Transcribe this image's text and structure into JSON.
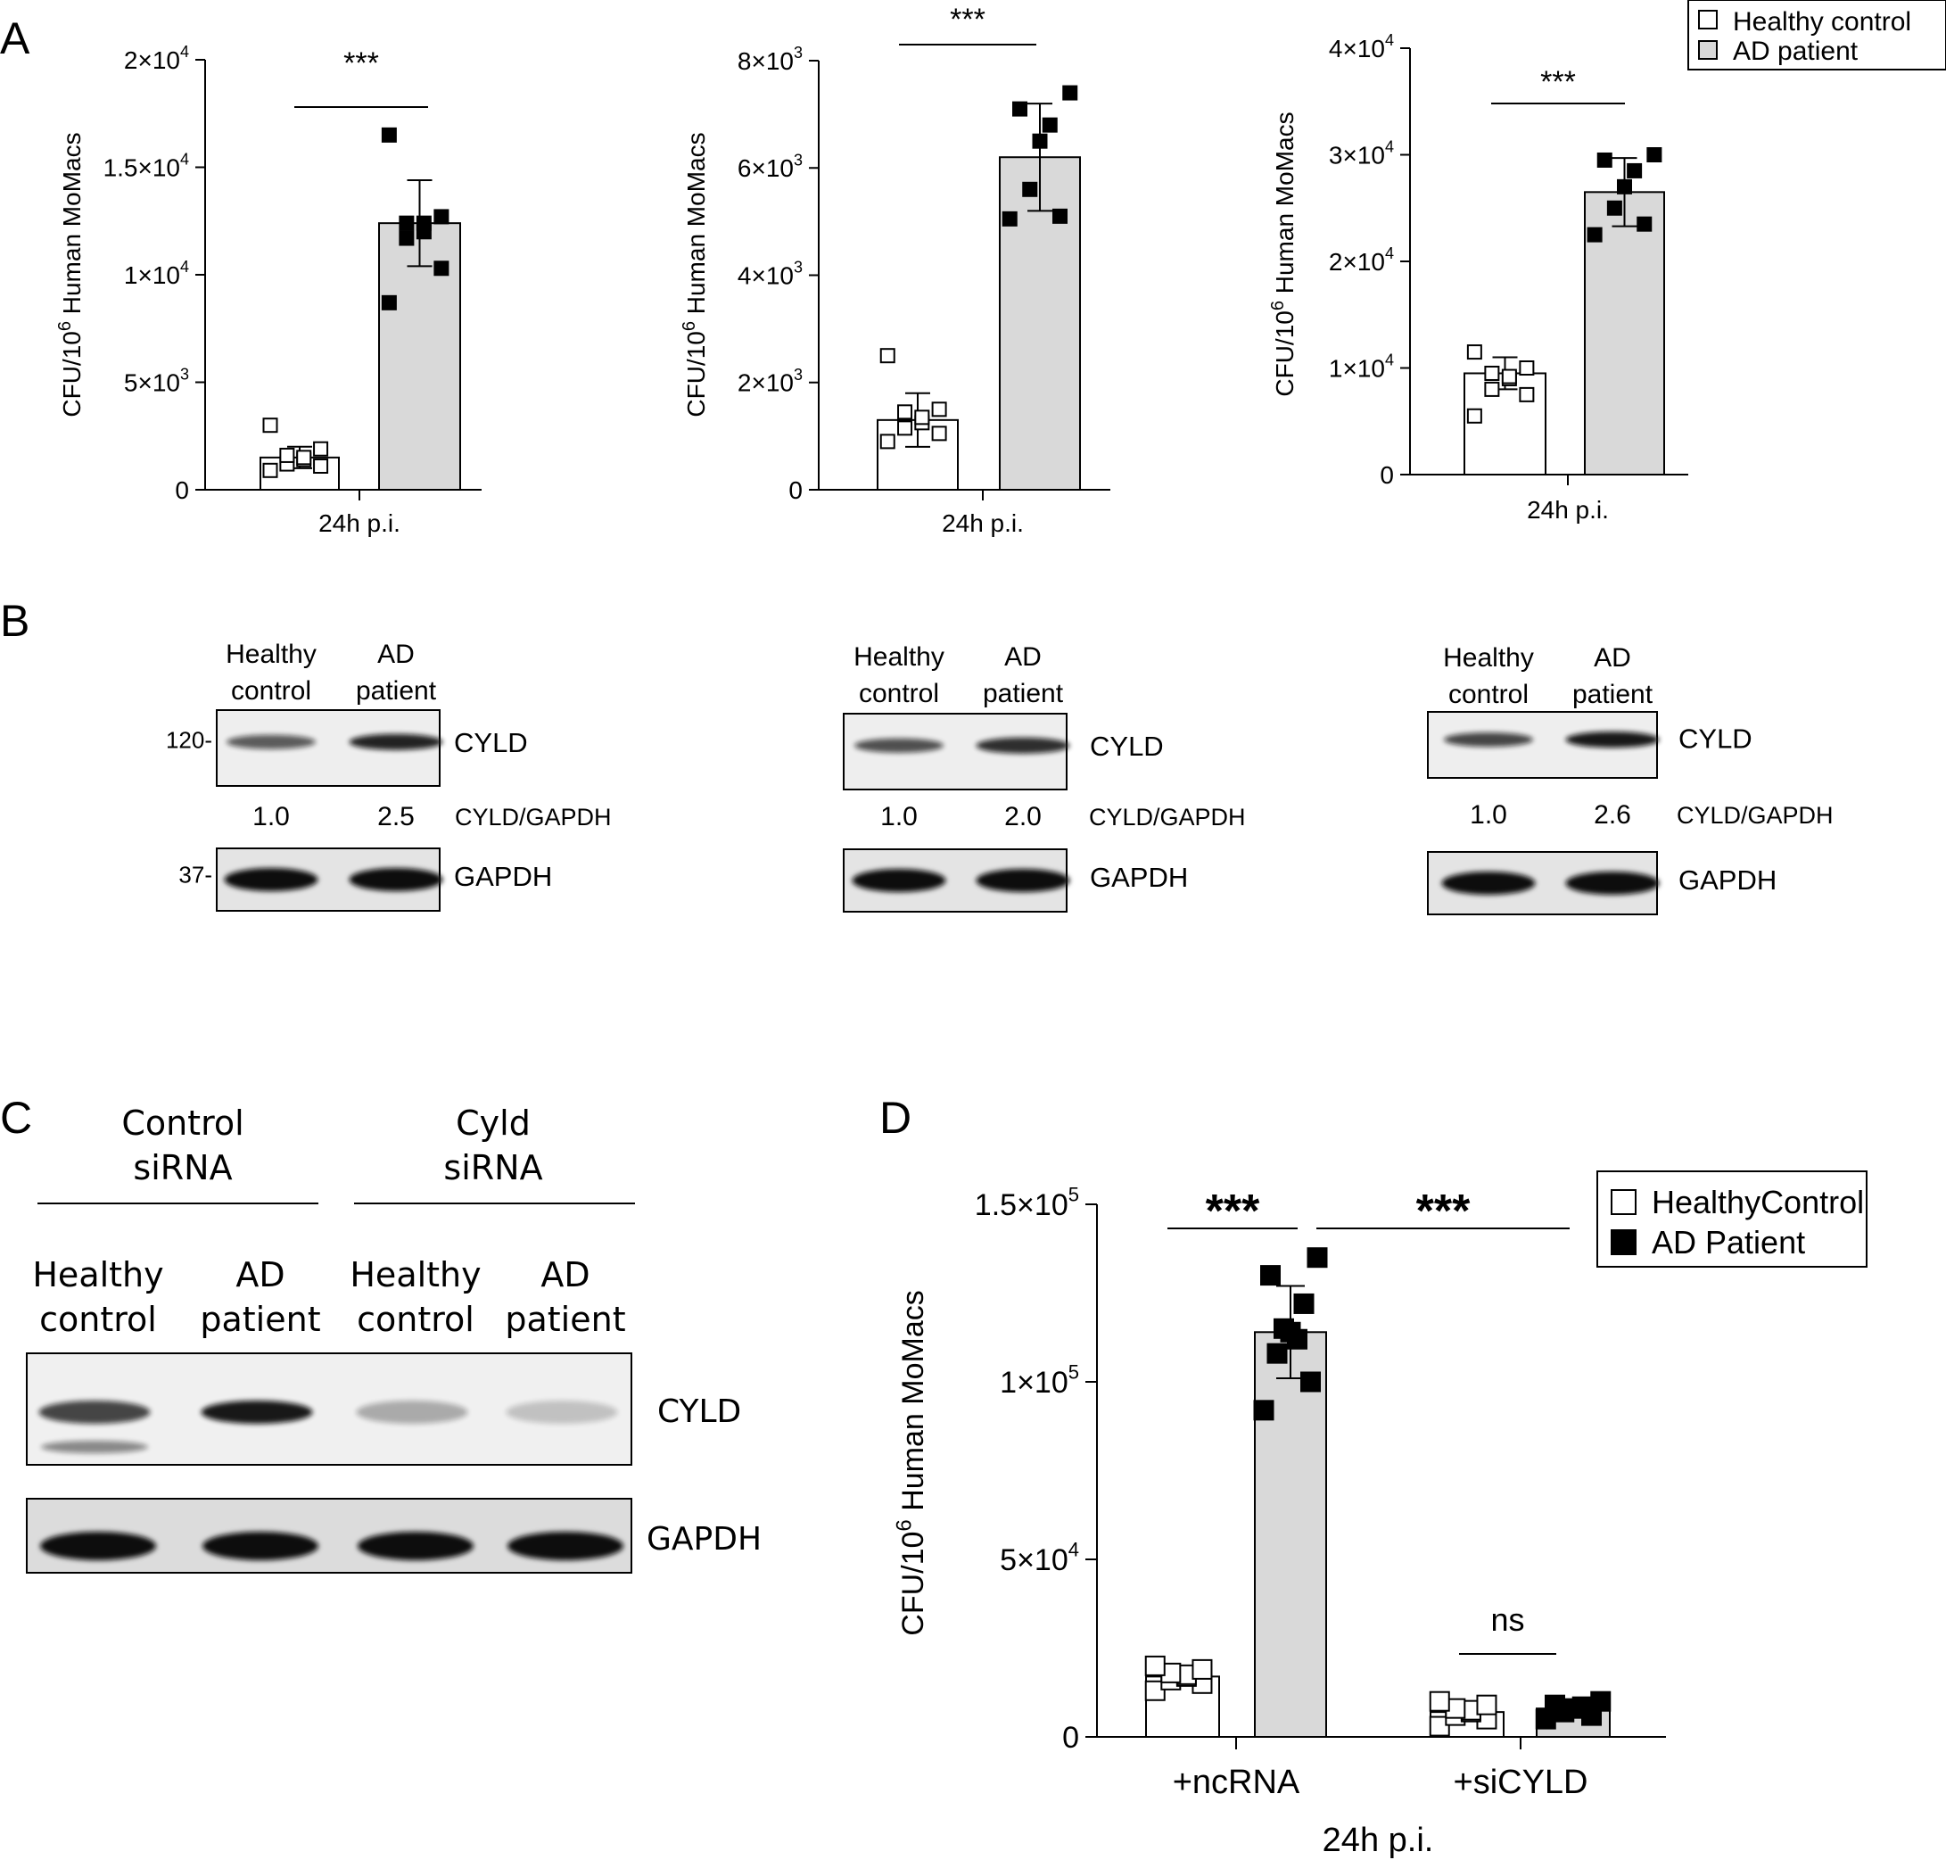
{
  "panel_labels": {
    "a": "A",
    "b": "B",
    "c": "C",
    "d": "D"
  },
  "legend_a": {
    "healthy": "Healthy control",
    "patient": "AD patient"
  },
  "legend_d": {
    "healthy": "HealthyControl",
    "patient": "AD Patient"
  },
  "colors": {
    "patient_bar": "#d9d9d9",
    "healthy_bar": "#ffffff",
    "blot_band": "#111111",
    "blot_bg": "#eeeeee"
  },
  "chart_data": [
    {
      "type": "bar",
      "panel": "A1",
      "ylabel_main": "CFU/10",
      "ylabel_sup": "6",
      "ylabel_rest": " Human MoMacs",
      "xlabel": "24h p.i.",
      "ylim": [
        0,
        20000
      ],
      "yticks": [
        {
          "v": 0,
          "base": "0",
          "exp": ""
        },
        {
          "v": 5000,
          "base": "5×10",
          "exp": "3"
        },
        {
          "v": 10000,
          "base": "1×10",
          "exp": "4"
        },
        {
          "v": 15000,
          "base": "1.5×10",
          "exp": "4"
        },
        {
          "v": 20000,
          "base": "2×10",
          "exp": "4"
        }
      ],
      "significance": "***",
      "series": [
        {
          "name": "Healthy control",
          "value": 1500,
          "error": 500,
          "points": [
            900,
            1100,
            1200,
            1400,
            1500,
            1600,
            1900,
            3000
          ]
        },
        {
          "name": "AD patient",
          "value": 12400,
          "error": 2000,
          "points": [
            8700,
            10300,
            11700,
            12000,
            12400,
            12400,
            12700,
            16500
          ]
        }
      ]
    },
    {
      "type": "bar",
      "panel": "A2",
      "ylabel_main": "CFU/10",
      "ylabel_sup": "6",
      "ylabel_rest": " Human MoMacs",
      "xlabel": "24h p.i.",
      "ylim": [
        0,
        8000
      ],
      "yticks": [
        {
          "v": 0,
          "base": "0",
          "exp": ""
        },
        {
          "v": 2000,
          "base": "2×10",
          "exp": "3"
        },
        {
          "v": 4000,
          "base": "4×10",
          "exp": "3"
        },
        {
          "v": 6000,
          "base": "6×10",
          "exp": "3"
        },
        {
          "v": 8000,
          "base": "8×10",
          "exp": "3"
        }
      ],
      "significance": "***",
      "series": [
        {
          "name": "Healthy control",
          "value": 1300,
          "error": 500,
          "points": [
            900,
            1050,
            1150,
            1250,
            1350,
            1450,
            1500,
            2500
          ]
        },
        {
          "name": "AD patient",
          "value": 6200,
          "error": 1000,
          "points": [
            5050,
            5100,
            5600,
            6500,
            6800,
            7100,
            7400
          ]
        }
      ]
    },
    {
      "type": "bar",
      "panel": "A3",
      "ylabel_main": "CFU/10",
      "ylabel_sup": "6",
      "ylabel_rest": " Human MoMacs",
      "xlabel": "24h p.i.",
      "ylim": [
        0,
        40000
      ],
      "yticks": [
        {
          "v": 0,
          "base": "0",
          "exp": ""
        },
        {
          "v": 10000,
          "base": "1×10",
          "exp": "4"
        },
        {
          "v": 20000,
          "base": "2×10",
          "exp": "4"
        },
        {
          "v": 30000,
          "base": "3×10",
          "exp": "4"
        },
        {
          "v": 40000,
          "base": "4×10",
          "exp": "4"
        }
      ],
      "significance": "***",
      "series": [
        {
          "name": "Healthy control",
          "value": 9500,
          "error": 1500,
          "points": [
            5500,
            7500,
            8000,
            9000,
            9200,
            9500,
            10000,
            11500
          ]
        },
        {
          "name": "AD patient",
          "value": 26500,
          "error": 3200,
          "points": [
            22500,
            23500,
            25000,
            27000,
            28500,
            29500,
            30000
          ]
        }
      ]
    },
    {
      "type": "bar",
      "panel": "D",
      "ylabel_main": "CFU/10",
      "ylabel_sup": "6",
      "ylabel_rest": " Human MoMacs",
      "xlabel": "24h p.i.",
      "ylim": [
        0,
        150000
      ],
      "yticks": [
        {
          "v": 0,
          "base": "0",
          "exp": ""
        },
        {
          "v": 50000,
          "base": "5×10",
          "exp": "4"
        },
        {
          "v": 100000,
          "base": "1×10",
          "exp": "5"
        },
        {
          "v": 150000,
          "base": "1.5×10",
          "exp": "5"
        }
      ],
      "categories": [
        "+ncRNA",
        "+siCYLD"
      ],
      "significance": [
        {
          "label": "***",
          "between": "ncRNA healthy vs ncRNA AD"
        },
        {
          "label": "***",
          "between": "ncRNA AD vs siCYLD"
        },
        {
          "label": "ns",
          "between": "siCYLD healthy vs siCYLD AD"
        }
      ],
      "series": [
        {
          "name": "HealthyControl",
          "values": [
            17000,
            7000
          ],
          "errors": [
            2500,
            2000
          ],
          "points": [
            [
              13000,
              15000,
              16000,
              17000,
              17500,
              18000,
              19000,
              20000
            ],
            [
              3000,
              5000,
              6000,
              7000,
              7500,
              8000,
              9000,
              10000
            ]
          ]
        },
        {
          "name": "AD Patient",
          "values": [
            114000,
            8000
          ],
          "errors": [
            13000,
            2000
          ],
          "points": [
            [
              92000,
              100000,
              108000,
              112000,
              114000,
              115000,
              122000,
              130000,
              135000
            ],
            [
              5000,
              6000,
              7000,
              8000,
              8500,
              9000,
              10000
            ]
          ]
        }
      ]
    }
  ],
  "blots_b": [
    {
      "lane1": [
        "Healthy",
        "control"
      ],
      "lane2": [
        "AD",
        "patient"
      ],
      "marker_top": "120-",
      "marker_bottom": "37-",
      "protein_top": "CYLD",
      "protein_bottom": "GAPDH",
      "ratio_label": "CYLD/GAPDH",
      "ratios": [
        "1.0",
        "2.5"
      ],
      "intensity": [
        0.65,
        0.9
      ]
    },
    {
      "lane1": [
        "Healthy",
        "control"
      ],
      "lane2": [
        "AD",
        "patient"
      ],
      "marker_top": "",
      "marker_bottom": "",
      "protein_top": "CYLD",
      "protein_bottom": "GAPDH",
      "ratio_label": "CYLD/GAPDH",
      "ratios": [
        "1.0",
        "2.0"
      ],
      "intensity": [
        0.7,
        0.85
      ]
    },
    {
      "lane1": [
        "Healthy",
        "control"
      ],
      "lane2": [
        "AD",
        "patient"
      ],
      "marker_top": "",
      "marker_bottom": "",
      "protein_top": "CYLD",
      "protein_bottom": "GAPDH",
      "ratio_label": "CYLD/GAPDH",
      "ratios": [
        "1.0",
        "2.6"
      ],
      "intensity": [
        0.75,
        0.95
      ]
    }
  ],
  "blot_c": {
    "group1": [
      "Control",
      "siRNA"
    ],
    "group2": [
      "Cyld",
      "siRNA"
    ],
    "lanes": [
      [
        "Healthy",
        "control"
      ],
      [
        "AD",
        "patient"
      ],
      [
        "Healthy",
        "control"
      ],
      [
        "AD",
        "patient"
      ]
    ],
    "protein_top": "CYLD",
    "protein_bottom": "GAPDH",
    "intensity": [
      0.75,
      0.95,
      0.3,
      0.2
    ]
  }
}
